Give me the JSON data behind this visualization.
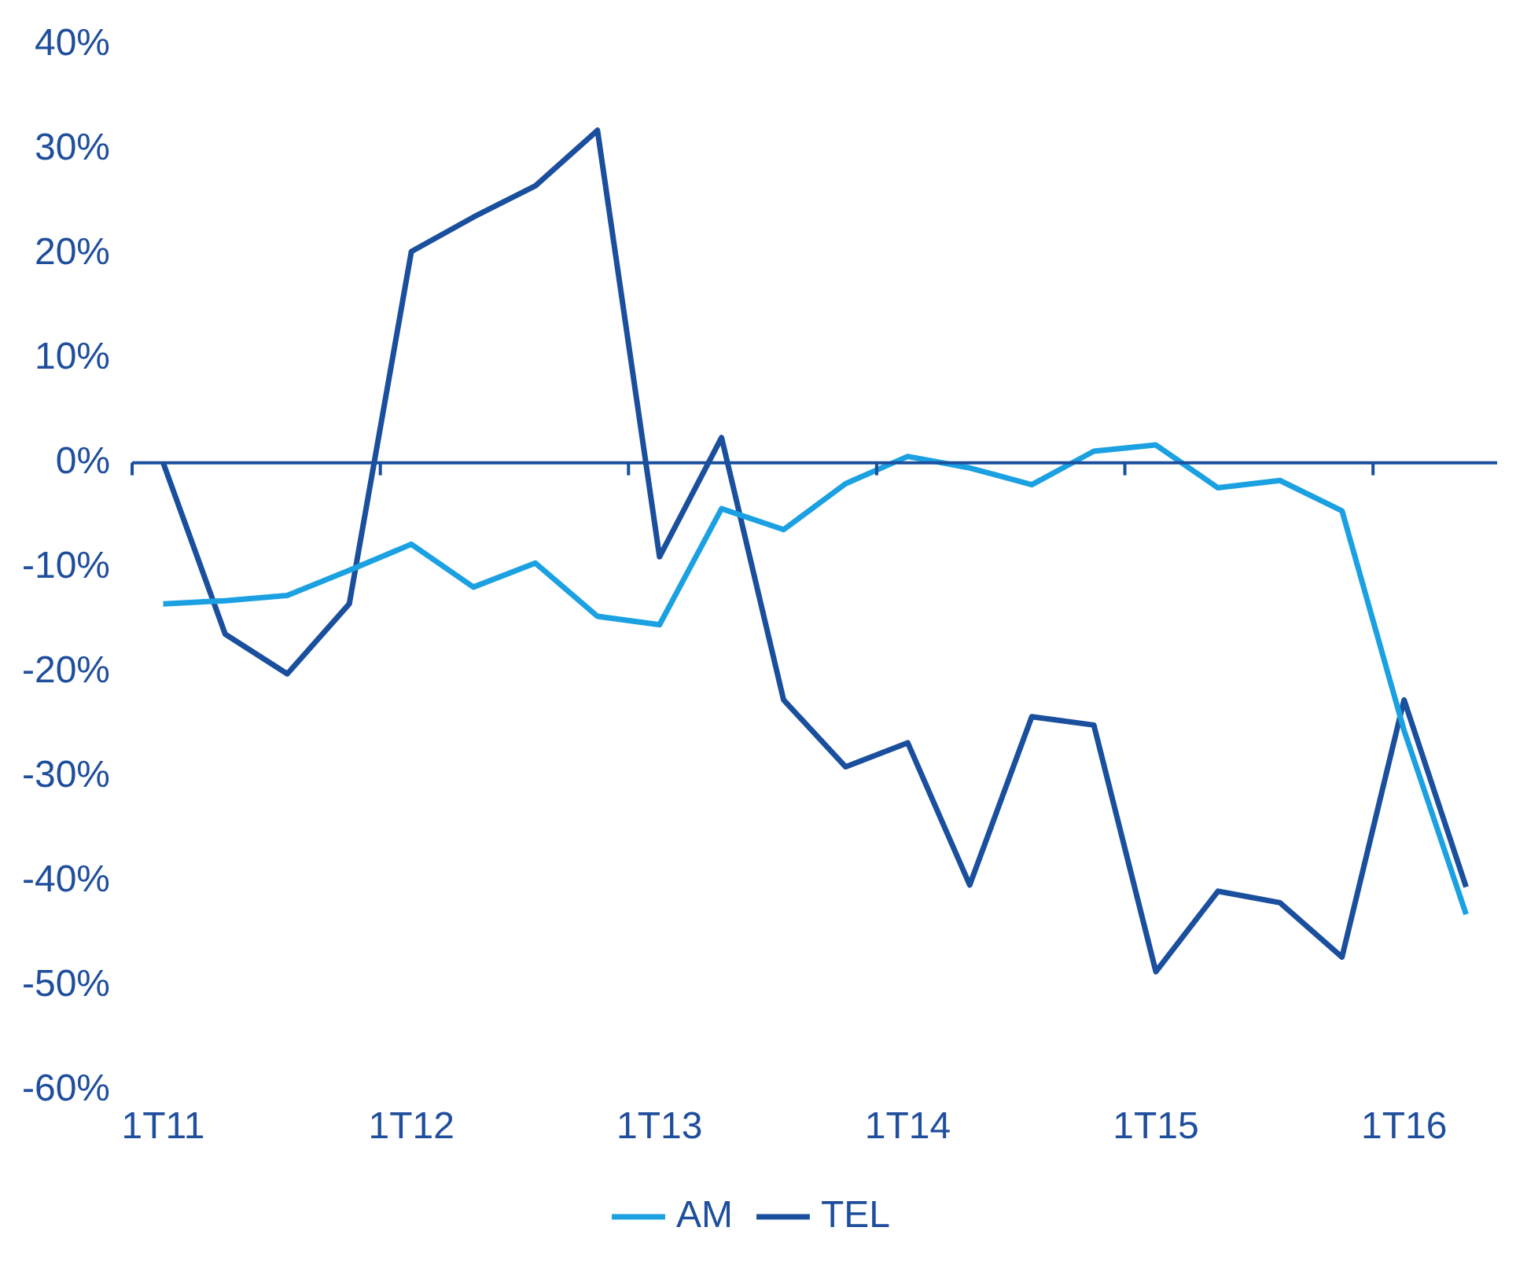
{
  "chart_data": {
    "type": "line",
    "categories": [
      "1T11",
      null,
      null,
      null,
      "1T12",
      null,
      null,
      null,
      "1T13",
      null,
      null,
      null,
      "1T14",
      null,
      null,
      null,
      "1T15",
      null,
      null,
      null,
      "1T16",
      null
    ],
    "series": [
      {
        "name": "AM",
        "color": "#1ba1e2",
        "values": [
          -13.5,
          -13.2,
          -12.7,
          -10.3,
          -7.8,
          -11.9,
          -9.6,
          -14.7,
          -15.5,
          -4.4,
          -6.4,
          -2.0,
          0.6,
          -0.5,
          -2.1,
          1.1,
          1.7,
          -2.4,
          -1.7,
          -4.6,
          -25.6,
          -43.2
        ]
      },
      {
        "name": "TEL",
        "color": "#1a4f9e",
        "values": [
          0,
          -16.4,
          -20.2,
          -13.5,
          20.2,
          23.5,
          26.5,
          31.8,
          -9.0,
          2.4,
          -22.7,
          -29.1,
          -26.8,
          -40.4,
          -24.3,
          -25.1,
          -48.7,
          -41.0,
          -42.1,
          -47.3,
          -22.7,
          -40.6
        ]
      }
    ],
    "ylim": [
      -60,
      40
    ],
    "yticks": [
      {
        "value": -60,
        "label": "-60%"
      },
      {
        "value": -50,
        "label": "-50%"
      },
      {
        "value": -40,
        "label": "-40%"
      },
      {
        "value": -30,
        "label": "-30%"
      },
      {
        "value": -20,
        "label": "-20%"
      },
      {
        "value": -10,
        "label": "-10%"
      },
      {
        "value": 0,
        "label": "0%"
      },
      {
        "value": 10,
        "label": "10%"
      },
      {
        "value": 20,
        "label": "20%"
      },
      {
        "value": 30,
        "label": "30%"
      },
      {
        "value": 40,
        "label": "40%"
      }
    ],
    "ref_lines": [
      {
        "axis": "y",
        "value": 0,
        "color": "#1a4f9e"
      }
    ],
    "grid": false,
    "legend": "bottom",
    "marker": "none",
    "line_style": "solid"
  }
}
